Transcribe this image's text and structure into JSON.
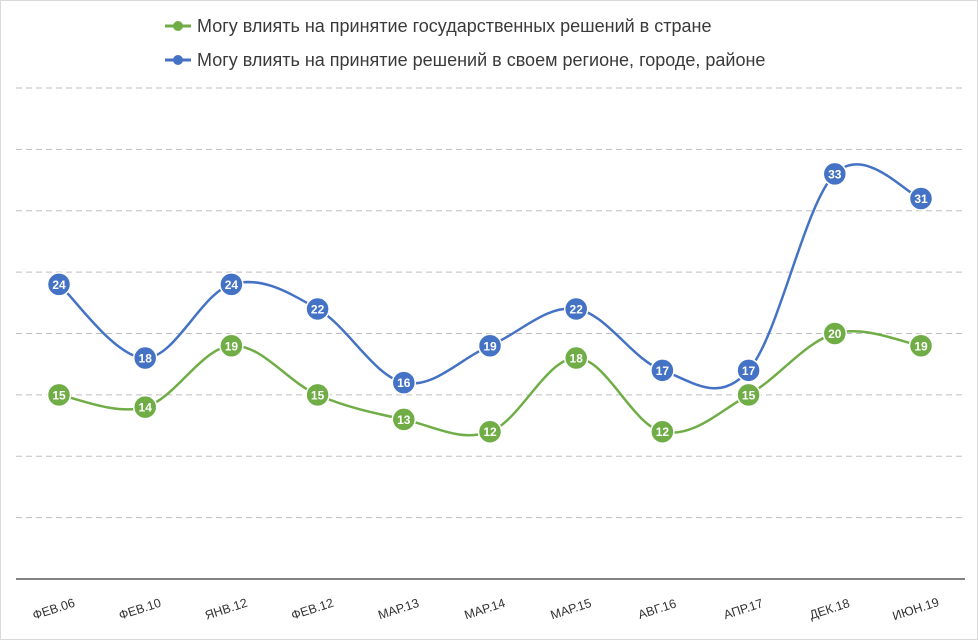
{
  "chart_data": {
    "type": "line",
    "title": "",
    "xlabel": "",
    "ylabel": "",
    "ylim": [
      0,
      40
    ],
    "grid": true,
    "legend_position": "top",
    "categories": [
      "ФЕВ.06",
      "ФЕВ.10",
      "ЯНВ.12",
      "ФЕВ.12",
      "МАР.13",
      "МАР.14",
      "МАР.15",
      "АВГ.16",
      "АПР.17",
      "ДЕК.18",
      "ИЮН.19"
    ],
    "series": [
      {
        "name": "Могу влиять на принятие государственных решений в стране",
        "color": "#70ad47",
        "values": [
          15,
          14,
          19,
          15,
          13,
          12,
          18,
          12,
          15,
          20,
          19
        ]
      },
      {
        "name": "Могу влиять на принятие решений в своем регионе, городе, районе",
        "color": "#4472c4",
        "values": [
          24,
          18,
          24,
          22,
          16,
          19,
          22,
          17,
          17,
          33,
          31
        ]
      }
    ]
  }
}
